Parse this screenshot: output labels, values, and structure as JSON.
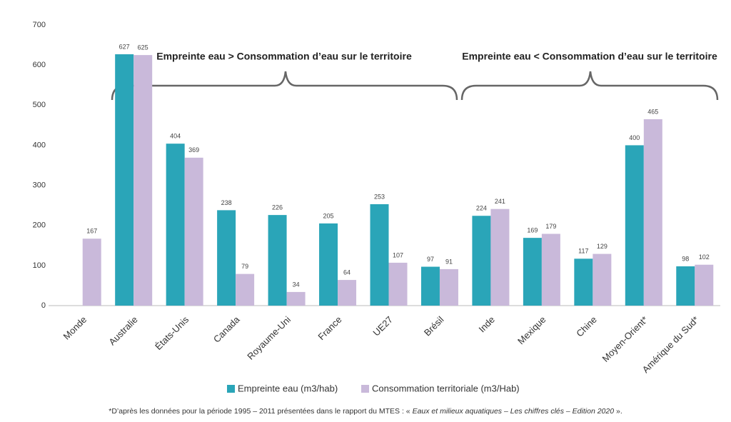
{
  "chart_data": {
    "type": "bar",
    "categories": [
      "Monde",
      "Australie",
      "États-Unis",
      "Canada",
      "Royaume-Uni",
      "France",
      "UE27",
      "Brésil",
      "Inde",
      "Mexique",
      "Chine",
      "Moyen-Orient*",
      "Amérique du Sud*"
    ],
    "series": [
      {
        "name": "Empreinte eau (m3/hab)",
        "color": "#2aa5b8",
        "values": [
          null,
          627,
          404,
          238,
          226,
          205,
          253,
          97,
          224,
          169,
          117,
          400,
          98
        ]
      },
      {
        "name": "Consommation territoriale (m3/Hab)",
        "color": "#c9b9da",
        "values": [
          167,
          625,
          369,
          79,
          34,
          64,
          107,
          91,
          241,
          179,
          129,
          465,
          102
        ]
      }
    ],
    "ylim": [
      0,
      700
    ],
    "yticks": [
      0,
      100,
      200,
      300,
      400,
      500,
      600,
      700
    ],
    "grid": false,
    "annotations": [
      "Empreinte eau > Consommation d’eau sur le territoire",
      "Empreinte eau < Consommation d’eau sur le territoire"
    ],
    "footnote": [
      "*D’après les données pour la période 1995 – 2011 présentées dans le rapport du MTES : « ",
      "Eaux et milieux aquatiques – Les chiffres clés – Edition 2020",
      " »."
    ]
  }
}
